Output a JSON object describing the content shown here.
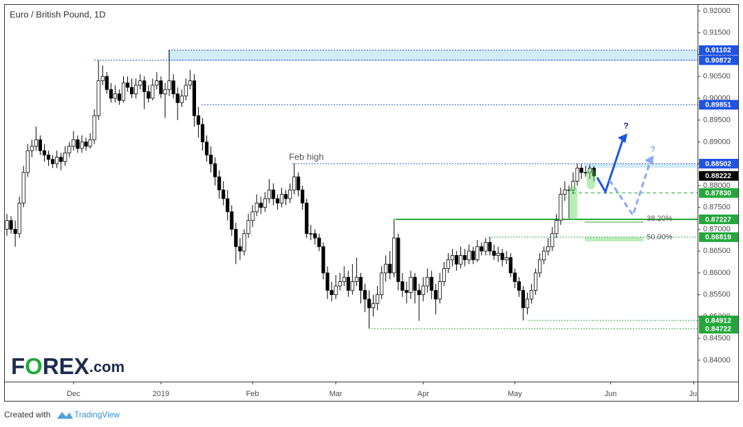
{
  "chart_data": {
    "type": "candlestick",
    "title": "Euro / British Pound, 1D",
    "xlim": [
      -0.5,
      165.9
    ],
    "xticks": [
      {
        "value": 16,
        "label": "Dec"
      },
      {
        "value": 37,
        "label": "2019"
      },
      {
        "value": 59,
        "label": "Feb"
      },
      {
        "value": 79,
        "label": "Mar"
      },
      {
        "value": 100,
        "label": "Apr"
      },
      {
        "value": 122,
        "label": "May"
      },
      {
        "value": 145,
        "label": "Jun"
      },
      {
        "value": 165,
        "label": "Jul"
      }
    ],
    "ylim": [
      0.8351,
      0.9214
    ],
    "yticks": [
      {
        "value": 0.92,
        "label": "0.92000"
      },
      {
        "value": 0.915,
        "label": "0.91500"
      },
      {
        "value": 0.91,
        "label": "0.91000"
      },
      {
        "value": 0.905,
        "label": "0.90500"
      },
      {
        "value": 0.9,
        "label": "0.90000"
      },
      {
        "value": 0.895,
        "label": "0.89500"
      },
      {
        "value": 0.89,
        "label": "0.89000"
      },
      {
        "value": 0.885,
        "label": "0.88500"
      },
      {
        "value": 0.88,
        "label": "0.88000"
      },
      {
        "value": 0.875,
        "label": "0.87500"
      },
      {
        "value": 0.87,
        "label": "0.87000"
      },
      {
        "value": 0.865,
        "label": "0.86500"
      },
      {
        "value": 0.86,
        "label": "0.86000"
      },
      {
        "value": 0.855,
        "label": "0.85500"
      },
      {
        "value": 0.85,
        "label": "0.85000"
      },
      {
        "value": 0.845,
        "label": "0.84500"
      },
      {
        "value": 0.84,
        "label": "0.84000"
      }
    ],
    "grid": false,
    "up_color": "#ffffff",
    "down_color": "#000000",
    "open": [
      0.87,
      0.872,
      0.87,
      0.869,
      0.876,
      0.883,
      0.888,
      0.889,
      0.8905,
      0.888,
      0.887,
      0.886,
      0.885,
      0.8865,
      0.8855,
      0.8875,
      0.889,
      0.8905,
      0.8885,
      0.89,
      0.889,
      0.8905,
      0.896,
      0.904,
      0.905,
      0.902,
      0.9,
      0.901,
      0.8995,
      0.9035,
      0.9025,
      0.901,
      0.903,
      0.904,
      0.9015,
      0.9,
      0.903,
      0.904,
      0.901,
      0.902,
      0.904,
      0.901,
      0.899,
      0.9005,
      0.903,
      0.904,
      0.896,
      0.894,
      0.89,
      0.887,
      0.885,
      0.882,
      0.879,
      0.877,
      0.874,
      0.87,
      0.866,
      0.865,
      0.869,
      0.872,
      0.874,
      0.876,
      0.875,
      0.877,
      0.879,
      0.877,
      0.876,
      0.878,
      0.877,
      0.879,
      0.882,
      0.879,
      0.876,
      0.869,
      0.869,
      0.868,
      0.866,
      0.86,
      0.856,
      0.855,
      0.857,
      0.858,
      0.859,
      0.856,
      0.858,
      0.859,
      0.856,
      0.854,
      0.852,
      0.853,
      0.855,
      0.86,
      0.862,
      0.86,
      0.868,
      0.858,
      0.856,
      0.8555,
      0.859,
      0.856,
      0.855,
      0.857,
      0.859,
      0.856,
      0.854,
      0.858,
      0.861,
      0.863,
      0.864,
      0.862,
      0.864,
      0.863,
      0.865,
      0.863,
      0.866,
      0.865,
      0.867,
      0.865,
      0.864,
      0.8645,
      0.863,
      0.8635,
      0.86,
      0.858,
      0.856,
      0.852,
      0.854,
      0.856,
      0.86,
      0.863,
      0.865,
      0.866,
      0.869,
      0.872,
      0.878,
      0.879,
      0.879,
      0.881,
      0.884,
      0.883,
      0.883,
      0.884
    ],
    "high": [
      0.8735,
      0.873,
      0.872,
      0.8775,
      0.8845,
      0.8895,
      0.8905,
      0.8935,
      0.8915,
      0.8895,
      0.888,
      0.887,
      0.888,
      0.8875,
      0.889,
      0.89,
      0.8925,
      0.8915,
      0.8915,
      0.891,
      0.892,
      0.8975,
      0.9087,
      0.9075,
      0.906,
      0.9035,
      0.903,
      0.902,
      0.905,
      0.905,
      0.9045,
      0.9045,
      0.9055,
      0.905,
      0.903,
      0.9045,
      0.906,
      0.905,
      0.9035,
      0.911,
      0.9055,
      0.9025,
      0.902,
      0.9045,
      0.9065,
      0.9055,
      0.898,
      0.8955,
      0.8915,
      0.889,
      0.8865,
      0.8835,
      0.881,
      0.879,
      0.8755,
      0.8715,
      0.868,
      0.87,
      0.8735,
      0.8755,
      0.878,
      0.8775,
      0.8785,
      0.8815,
      0.8805,
      0.878,
      0.8795,
      0.879,
      0.8805,
      0.885,
      0.883,
      0.88,
      0.877,
      0.871,
      0.87,
      0.869,
      0.867,
      0.8615,
      0.858,
      0.8595,
      0.86,
      0.8615,
      0.8605,
      0.862,
      0.8635,
      0.86,
      0.8575,
      0.856,
      0.855,
      0.857,
      0.8615,
      0.864,
      0.865,
      0.8724,
      0.869,
      0.86,
      0.858,
      0.8605,
      0.86,
      0.8575,
      0.859,
      0.861,
      0.8605,
      0.8575,
      0.86,
      0.8625,
      0.8645,
      0.8655,
      0.865,
      0.866,
      0.8655,
      0.8665,
      0.866,
      0.8675,
      0.867,
      0.868,
      0.8682,
      0.8665,
      0.866,
      0.8655,
      0.865,
      0.8645,
      0.861,
      0.859,
      0.857,
      0.8555,
      0.8575,
      0.861,
      0.8645,
      0.866,
      0.868,
      0.8705,
      0.8735,
      0.8795,
      0.881,
      0.88,
      0.883,
      0.885,
      0.885,
      0.8845,
      0.8848,
      0.8845
    ],
    "low": [
      0.8685,
      0.869,
      0.866,
      0.868,
      0.875,
      0.882,
      0.8865,
      0.888,
      0.887,
      0.8855,
      0.8845,
      0.884,
      0.884,
      0.8835,
      0.8845,
      0.8865,
      0.888,
      0.8875,
      0.8875,
      0.888,
      0.8885,
      0.8895,
      0.895,
      0.903,
      0.901,
      0.899,
      0.899,
      0.8985,
      0.899,
      0.9015,
      0.9,
      0.9,
      0.902,
      0.8975,
      0.899,
      0.8995,
      0.902,
      0.9,
      0.8955,
      0.9005,
      0.9,
      0.895,
      0.898,
      0.8995,
      0.902,
      0.8935,
      0.891,
      0.888,
      0.8855,
      0.883,
      0.88,
      0.877,
      0.8755,
      0.872,
      0.8685,
      0.862,
      0.863,
      0.864,
      0.868,
      0.8705,
      0.873,
      0.8735,
      0.874,
      0.876,
      0.8755,
      0.8745,
      0.875,
      0.8755,
      0.876,
      0.878,
      0.8775,
      0.8745,
      0.868,
      0.8675,
      0.8665,
      0.865,
      0.8585,
      0.854,
      0.8535,
      0.854,
      0.856,
      0.857,
      0.8545,
      0.855,
      0.857,
      0.853,
      0.851,
      0.8472,
      0.85,
      0.8515,
      0.854,
      0.858,
      0.8585,
      0.859,
      0.856,
      0.8545,
      0.853,
      0.854,
      0.853,
      0.849,
      0.8535,
      0.8555,
      0.854,
      0.8505,
      0.853,
      0.857,
      0.86,
      0.8615,
      0.8605,
      0.861,
      0.8615,
      0.862,
      0.862,
      0.8625,
      0.864,
      0.864,
      0.864,
      0.863,
      0.8625,
      0.8615,
      0.862,
      0.859,
      0.8565,
      0.8545,
      0.8491,
      0.8505,
      0.853,
      0.855,
      0.859,
      0.862,
      0.864,
      0.865,
      0.868,
      0.871,
      0.8765,
      0.8725,
      0.878,
      0.88,
      0.8815,
      0.882,
      0.8815,
      0.881
    ],
    "close": [
      0.872,
      0.87,
      0.869,
      0.876,
      0.883,
      0.888,
      0.889,
      0.8905,
      0.888,
      0.887,
      0.886,
      0.885,
      0.8865,
      0.8855,
      0.8875,
      0.889,
      0.8905,
      0.8885,
      0.89,
      0.889,
      0.8905,
      0.896,
      0.904,
      0.905,
      0.902,
      0.9,
      0.901,
      0.8995,
      0.9035,
      0.9025,
      0.901,
      0.903,
      0.904,
      0.9015,
      0.9,
      0.903,
      0.904,
      0.901,
      0.902,
      0.904,
      0.901,
      0.899,
      0.9005,
      0.903,
      0.904,
      0.896,
      0.894,
      0.89,
      0.887,
      0.885,
      0.882,
      0.879,
      0.877,
      0.874,
      0.87,
      0.866,
      0.865,
      0.869,
      0.872,
      0.874,
      0.876,
      0.875,
      0.877,
      0.879,
      0.877,
      0.876,
      0.878,
      0.877,
      0.879,
      0.882,
      0.879,
      0.876,
      0.869,
      0.869,
      0.868,
      0.866,
      0.86,
      0.856,
      0.855,
      0.857,
      0.858,
      0.859,
      0.856,
      0.858,
      0.859,
      0.856,
      0.854,
      0.852,
      0.853,
      0.855,
      0.86,
      0.862,
      0.86,
      0.868,
      0.858,
      0.856,
      0.8555,
      0.859,
      0.856,
      0.855,
      0.857,
      0.859,
      0.856,
      0.854,
      0.858,
      0.861,
      0.863,
      0.864,
      0.862,
      0.864,
      0.863,
      0.865,
      0.863,
      0.866,
      0.865,
      0.867,
      0.865,
      0.864,
      0.8645,
      0.863,
      0.8635,
      0.86,
      0.858,
      0.856,
      0.852,
      0.854,
      0.856,
      0.86,
      0.863,
      0.865,
      0.866,
      0.869,
      0.872,
      0.878,
      0.879,
      0.879,
      0.881,
      0.884,
      0.883,
      0.883,
      0.884,
      0.8822
    ],
    "levels": [
      {
        "value": 0.91102,
        "color": "#1e53e5"
      },
      {
        "value": 0.90872,
        "color": "#1e53e5"
      },
      {
        "value": 0.89851,
        "color": "#1e53e5"
      },
      {
        "value": 0.88502,
        "color": "#1e53e5"
      },
      {
        "value": 0.88222,
        "color": "#000000"
      },
      {
        "value": 0.8783,
        "color": "#22a83a"
      },
      {
        "value": 0.87227,
        "color": "#22a83a"
      },
      {
        "value": 0.86819,
        "color": "#22a83a"
      },
      {
        "value": 0.84912,
        "color": "#22a83a"
      },
      {
        "value": 0.84722,
        "color": "#22a83a"
      }
    ],
    "level_labels": [
      "0.91102",
      "0.90872",
      "0.89851",
      "0.88502",
      "0.88222",
      "0.87830",
      "0.87227",
      "0.86819",
      "0.84912",
      "0.84722"
    ],
    "annotations": {
      "feb_high": "Feb high",
      "fib_382": "38.20%",
      "fib_500": "50.00%",
      "question_1": "?",
      "question_2": "?"
    },
    "logo": [
      "F",
      "O",
      "REX",
      ".com"
    ],
    "footer": {
      "created_with": "Created with",
      "brand": "TradingView"
    }
  }
}
